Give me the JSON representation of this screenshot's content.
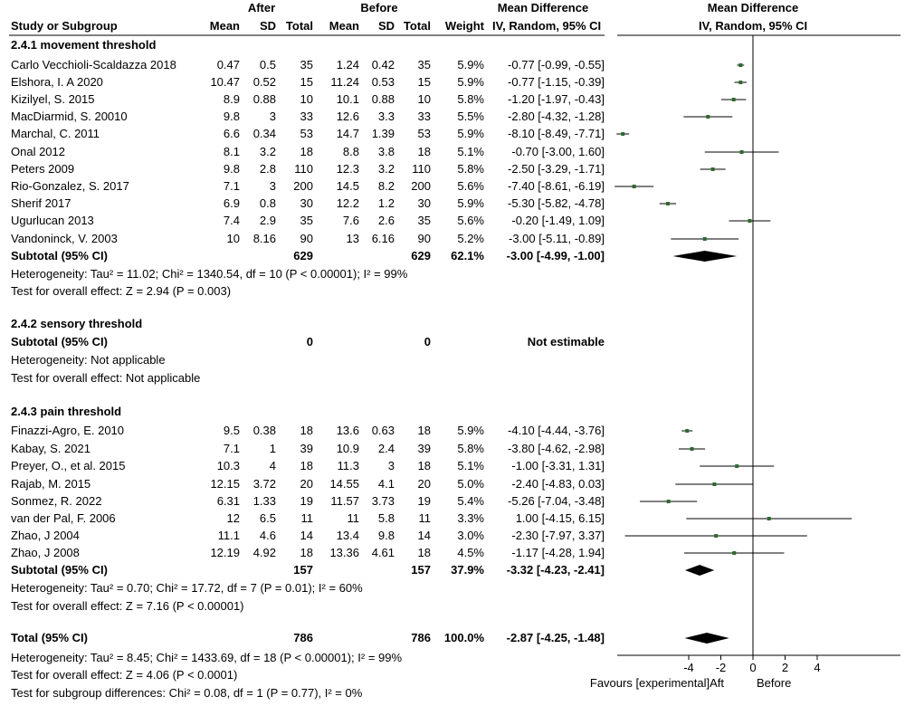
{
  "header": {
    "after_label": "After",
    "before_label": "Before",
    "md_label": "Mean Difference",
    "md_plot_label": "Mean Difference",
    "study_col": "Study or Subgroup",
    "mean": "Mean",
    "sd": "SD",
    "total": "Total",
    "weight": "Weight",
    "method": "IV, Random, 95% CI",
    "plot_method": "IV, Random, 95% CI"
  },
  "groups": [
    {
      "title": "2.4.1 movement threshold",
      "studies": [
        {
          "name": "Carlo Vecchioli-Scaldazza 2018",
          "a_mean": "0.47",
          "a_sd": "0.5",
          "a_n": "35",
          "b_mean": "1.24",
          "b_sd": "0.42",
          "b_n": "35",
          "weight": "5.9%",
          "ci": "-0.77 [-0.99, -0.55]"
        },
        {
          "name": "Elshora, I. A 2020",
          "a_mean": "10.47",
          "a_sd": "0.52",
          "a_n": "15",
          "b_mean": "11.24",
          "b_sd": "0.53",
          "b_n": "15",
          "weight": "5.9%",
          "ci": "-0.77 [-1.15, -0.39]"
        },
        {
          "name": "Kizilyel, S. 2015",
          "a_mean": "8.9",
          "a_sd": "0.88",
          "a_n": "10",
          "b_mean": "10.1",
          "b_sd": "0.88",
          "b_n": "10",
          "weight": "5.8%",
          "ci": "-1.20 [-1.97, -0.43]"
        },
        {
          "name": "MacDiarmid, S. 20010",
          "a_mean": "9.8",
          "a_sd": "3",
          "a_n": "33",
          "b_mean": "12.6",
          "b_sd": "3.3",
          "b_n": "33",
          "weight": "5.5%",
          "ci": "-2.80 [-4.32, -1.28]"
        },
        {
          "name": "Marchal, C. 2011",
          "a_mean": "6.6",
          "a_sd": "0.34",
          "a_n": "53",
          "b_mean": "14.7",
          "b_sd": "1.39",
          "b_n": "53",
          "weight": "5.9%",
          "ci": "-8.10 [-8.49, -7.71]"
        },
        {
          "name": "Onal 2012",
          "a_mean": "8.1",
          "a_sd": "3.2",
          "a_n": "18",
          "b_mean": "8.8",
          "b_sd": "3.8",
          "b_n": "18",
          "weight": "5.1%",
          "ci": "-0.70 [-3.00, 1.60]"
        },
        {
          "name": "Peters 2009",
          "a_mean": "9.8",
          "a_sd": "2.8",
          "a_n": "110",
          "b_mean": "12.3",
          "b_sd": "3.2",
          "b_n": "110",
          "weight": "5.8%",
          "ci": "-2.50 [-3.29, -1.71]"
        },
        {
          "name": "Rio-Gonzalez, S. 2017",
          "a_mean": "7.1",
          "a_sd": "3",
          "a_n": "200",
          "b_mean": "14.5",
          "b_sd": "8.2",
          "b_n": "200",
          "weight": "5.6%",
          "ci": "-7.40 [-8.61, -6.19]"
        },
        {
          "name": "Sherif 2017",
          "a_mean": "6.9",
          "a_sd": "0.8",
          "a_n": "30",
          "b_mean": "12.2",
          "b_sd": "1.2",
          "b_n": "30",
          "weight": "5.9%",
          "ci": "-5.30 [-5.82, -4.78]"
        },
        {
          "name": "Ugurlucan 2013",
          "a_mean": "7.4",
          "a_sd": "2.9",
          "a_n": "35",
          "b_mean": "7.6",
          "b_sd": "2.6",
          "b_n": "35",
          "weight": "5.6%",
          "ci": "-0.20 [-1.49, 1.09]"
        },
        {
          "name": "Vandoninck, V. 2003",
          "a_mean": "10",
          "a_sd": "8.16",
          "a_n": "90",
          "b_mean": "13",
          "b_sd": "6.16",
          "b_n": "90",
          "weight": "5.2%",
          "ci": "-3.00 [-5.11, -0.89]"
        }
      ],
      "subtotal": {
        "label": "Subtotal (95% CI)",
        "a_n": "629",
        "b_n": "629",
        "weight": "62.1%",
        "ci": "-3.00 [-4.99, -1.00]"
      },
      "heterogeneity": "Heterogeneity: Tau² = 11.02; Chi² = 1340.54, df = 10 (P < 0.00001); I² = 99%",
      "overall": "Test for overall effect: Z = 2.94 (P = 0.003)"
    },
    {
      "title": "2.4.2 sensory threshold",
      "studies": [],
      "subtotal": {
        "label": "Subtotal (95% CI)",
        "a_n": "0",
        "b_n": "0",
        "weight": "",
        "ci": "Not estimable"
      },
      "heterogeneity": "Heterogeneity: Not applicable",
      "overall": "Test for overall effect: Not applicable"
    },
    {
      "title": "2.4.3 pain threshold",
      "studies": [
        {
          "name": "Finazzi-Agro, E. 2010",
          "a_mean": "9.5",
          "a_sd": "0.38",
          "a_n": "18",
          "b_mean": "13.6",
          "b_sd": "0.63",
          "b_n": "18",
          "weight": "5.9%",
          "ci": "-4.10 [-4.44, -3.76]"
        },
        {
          "name": "Kabay, S. 2021",
          "a_mean": "7.1",
          "a_sd": "1",
          "a_n": "39",
          "b_mean": "10.9",
          "b_sd": "2.4",
          "b_n": "39",
          "weight": "5.8%",
          "ci": "-3.80 [-4.62, -2.98]"
        },
        {
          "name": "Preyer, O., et al. 2015",
          "a_mean": "10.3",
          "a_sd": "4",
          "a_n": "18",
          "b_mean": "11.3",
          "b_sd": "3",
          "b_n": "18",
          "weight": "5.1%",
          "ci": "-1.00 [-3.31, 1.31]"
        },
        {
          "name": "Rajab, M. 2015",
          "a_mean": "12.15",
          "a_sd": "3.72",
          "a_n": "20",
          "b_mean": "14.55",
          "b_sd": "4.1",
          "b_n": "20",
          "weight": "5.0%",
          "ci": "-2.40 [-4.83, 0.03]"
        },
        {
          "name": "Sonmez, R. 2022",
          "a_mean": "6.31",
          "a_sd": "1.33",
          "a_n": "19",
          "b_mean": "11.57",
          "b_sd": "3.73",
          "b_n": "19",
          "weight": "5.4%",
          "ci": "-5.26 [-7.04, -3.48]"
        },
        {
          "name": "van der Pal, F. 2006",
          "a_mean": "12",
          "a_sd": "6.5",
          "a_n": "11",
          "b_mean": "11",
          "b_sd": "5.8",
          "b_n": "11",
          "weight": "3.3%",
          "ci": "1.00 [-4.15, 6.15]"
        },
        {
          "name": "Zhao, J 2004",
          "a_mean": "11.1",
          "a_sd": "4.6",
          "a_n": "14",
          "b_mean": "13.4",
          "b_sd": "9.8",
          "b_n": "14",
          "weight": "3.0%",
          "ci": "-2.30 [-7.97, 3.37]"
        },
        {
          "name": "Zhao, J 2008",
          "a_mean": "12.19",
          "a_sd": "4.92",
          "a_n": "18",
          "b_mean": "13.36",
          "b_sd": "4.61",
          "b_n": "18",
          "weight": "4.5%",
          "ci": "-1.17 [-4.28, 1.94]"
        }
      ],
      "subtotal": {
        "label": "Subtotal (95% CI)",
        "a_n": "157",
        "b_n": "157",
        "weight": "37.9%",
        "ci": "-3.32 [-4.23, -2.41]"
      },
      "heterogeneity": "Heterogeneity: Tau² = 0.70; Chi² = 17.72, df = 7 (P = 0.01); I² = 60%",
      "overall": "Test for overall effect: Z = 7.16 (P < 0.00001)"
    }
  ],
  "total": {
    "label": "Total (95% CI)",
    "a_n": "786",
    "b_n": "786",
    "weight": "100.0%",
    "ci": "-2.87 [-4.25, -1.48]"
  },
  "total_heterogeneity": "Heterogeneity: Tau² = 8.45; Chi² = 1433.69, df = 18 (P < 0.00001); I² = 99%",
  "total_overall": "Test for overall effect: Z = 4.06 (P < 0.0001)",
  "subgroup_diff": "Test for subgroup differences: Chi² = 0.08, df = 1 (P = 0.77), I² = 0%",
  "axis": {
    "ticks": [
      "-4",
      "-2",
      "0",
      "2",
      "4"
    ],
    "favours_left": "Favours [experimental]Aft",
    "favours_right": "Before"
  },
  "colors": {
    "point": "#2e6b2e",
    "line": "#000000",
    "diamond": "#000000"
  },
  "chart_data": {
    "type": "forest",
    "xlim": [
      -8.3,
      5.8
    ],
    "xticks": [
      -4,
      -2,
      0,
      2,
      4
    ],
    "groups": [
      {
        "name": "2.4.1 movement threshold",
        "points": [
          {
            "md": -0.77,
            "lo": -0.99,
            "hi": -0.55
          },
          {
            "md": -0.77,
            "lo": -1.15,
            "hi": -0.39
          },
          {
            "md": -1.2,
            "lo": -1.97,
            "hi": -0.43
          },
          {
            "md": -2.8,
            "lo": -4.32,
            "hi": -1.28
          },
          {
            "md": -8.1,
            "lo": -8.49,
            "hi": -7.71
          },
          {
            "md": -0.7,
            "lo": -3.0,
            "hi": 1.6
          },
          {
            "md": -2.5,
            "lo": -3.29,
            "hi": -1.71
          },
          {
            "md": -7.4,
            "lo": -8.61,
            "hi": -6.19
          },
          {
            "md": -5.3,
            "lo": -5.82,
            "hi": -4.78
          },
          {
            "md": -0.2,
            "lo": -1.49,
            "hi": 1.09
          },
          {
            "md": -3.0,
            "lo": -5.11,
            "hi": -0.89
          }
        ],
        "subtotal": {
          "md": -3.0,
          "lo": -4.99,
          "hi": -1.0
        }
      },
      {
        "name": "2.4.2 sensory threshold",
        "points": [],
        "subtotal": null
      },
      {
        "name": "2.4.3 pain threshold",
        "points": [
          {
            "md": -4.1,
            "lo": -4.44,
            "hi": -3.76
          },
          {
            "md": -3.8,
            "lo": -4.62,
            "hi": -2.98
          },
          {
            "md": -1.0,
            "lo": -3.31,
            "hi": 1.31
          },
          {
            "md": -2.4,
            "lo": -4.83,
            "hi": 0.03
          },
          {
            "md": -5.26,
            "lo": -7.04,
            "hi": -3.48
          },
          {
            "md": 1.0,
            "lo": -4.15,
            "hi": 6.15
          },
          {
            "md": -2.3,
            "lo": -7.97,
            "hi": 3.37
          },
          {
            "md": -1.17,
            "lo": -4.28,
            "hi": 1.94
          }
        ],
        "subtotal": {
          "md": -3.32,
          "lo": -4.23,
          "hi": -2.41
        }
      }
    ],
    "total": {
      "md": -2.87,
      "lo": -4.25,
      "hi": -1.48
    }
  }
}
